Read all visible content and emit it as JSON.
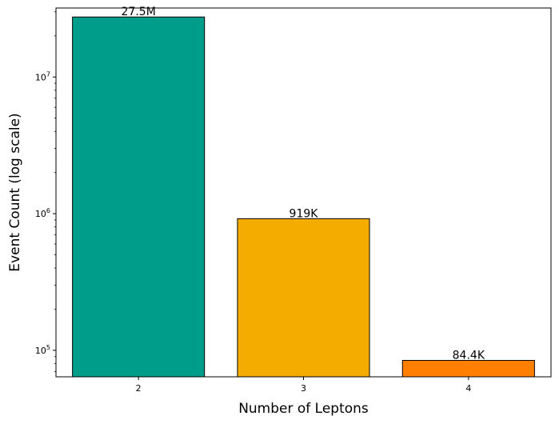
{
  "chart_data": {
    "type": "bar",
    "title": "",
    "xlabel": "Number of Leptons",
    "ylabel": "Event Count (log scale)",
    "yscale": "log",
    "ylim": [
      64000,
      32000000
    ],
    "categories": [
      "2",
      "3",
      "4"
    ],
    "values": [
      27500000,
      919000,
      84400
    ],
    "data_labels": [
      "27.5M",
      "919K",
      "84.4K"
    ],
    "colors": [
      "#009e8a",
      "#f4ac00",
      "#ff8000"
    ],
    "edge_color": "#000000",
    "y_major_ticks": [
      {
        "value": 100000,
        "base": "10",
        "exp": "5"
      },
      {
        "value": 1000000,
        "base": "10",
        "exp": "6"
      },
      {
        "value": 10000000,
        "base": "10",
        "exp": "7"
      }
    ],
    "grid": false,
    "legend": "none"
  }
}
